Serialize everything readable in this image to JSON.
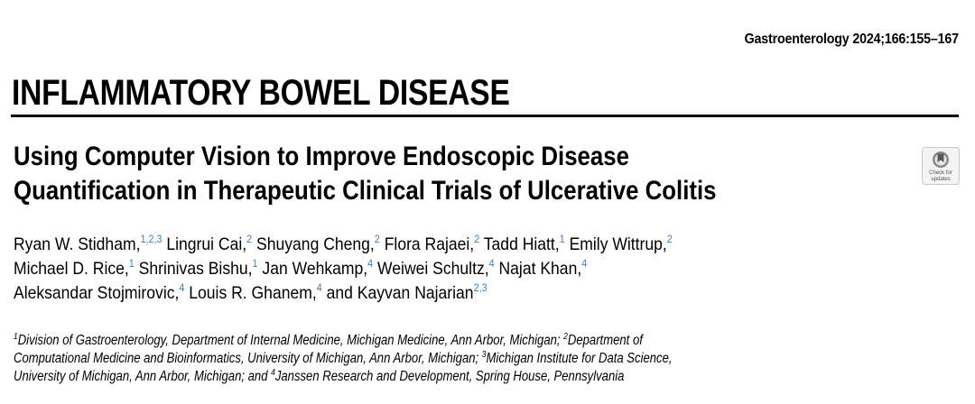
{
  "journal": {
    "citation": "Gastroenterology 2024;166:155–167"
  },
  "section": {
    "title": "INFLAMMATORY BOWEL DISEASE"
  },
  "article": {
    "title_lines": [
      "Using Computer Vision to Improve Endoscopic Disease",
      "Quantification in Therapeutic Clinical Trials of Ulcerative Colitis"
    ]
  },
  "badge": {
    "line1": "Check for",
    "line2": "updates",
    "icon": "check-for-updates-icon"
  },
  "authors": [
    {
      "name": "Ryan W. Stidham,",
      "sup": "1,2,3"
    },
    {
      "name": "Lingrui Cai,",
      "sup": "2"
    },
    {
      "name": "Shuyang Cheng,",
      "sup": "2"
    },
    {
      "name": "Flora Rajaei,",
      "sup": "2"
    },
    {
      "name": "Tadd Hiatt,",
      "sup": "1"
    },
    {
      "name": "Emily Wittrup,",
      "sup": "2"
    },
    {
      "name": "Michael D. Rice,",
      "sup": "1"
    },
    {
      "name": "Shrinivas Bishu,",
      "sup": "1"
    },
    {
      "name": "Jan Wehkamp,",
      "sup": "4"
    },
    {
      "name": "Weiwei Schultz,",
      "sup": "4"
    },
    {
      "name": "Najat Khan,",
      "sup": "4"
    },
    {
      "name": "Aleksandar Stojmirovic,",
      "sup": "4"
    },
    {
      "name": "Louis R. Ghanem,",
      "sup": "4"
    },
    {
      "name": "and Kayvan Najarian",
      "sup": "2,3"
    }
  ],
  "affiliations": {
    "line1": {
      "sup_a": "1",
      "text_a": "Division of Gastroenterology, Department of Internal Medicine, Michigan Medicine, Ann Arbor, Michigan; ",
      "sup_b": "2",
      "text_b": "Department of"
    },
    "line2": {
      "text_a": "Computational Medicine and Bioinformatics, University of Michigan, Ann Arbor, Michigan; ",
      "sup_b": "3",
      "text_b": "Michigan Institute for Data Science,"
    },
    "line3": {
      "text_a": "University of Michigan, Ann Arbor, Michigan; and ",
      "sup_b": "4",
      "text_b": "Janssen Research and Development, Spring House, Pennsylvania"
    }
  }
}
